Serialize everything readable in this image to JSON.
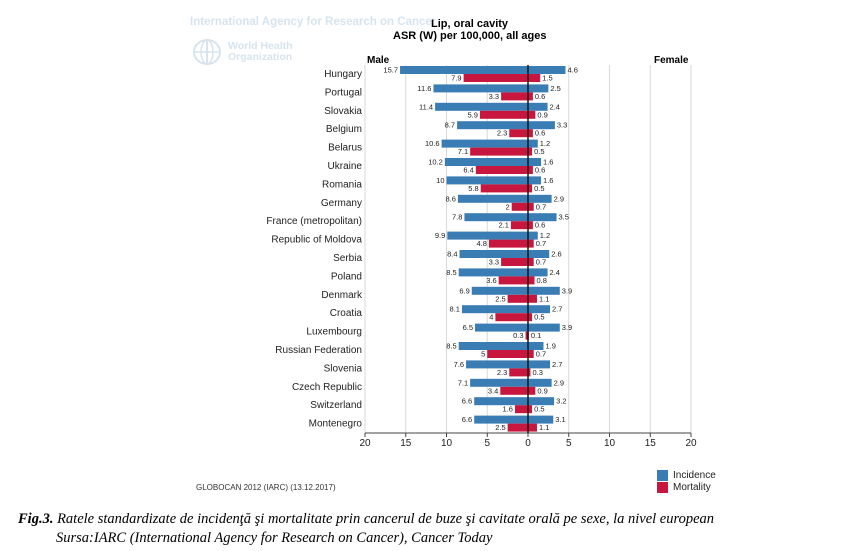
{
  "watermark": {
    "iarc": "International Agency for Research on Cancer",
    "who_line1": "World Health",
    "who_line2": "Organization"
  },
  "chart_data": {
    "type": "bar",
    "orientation": "horizontal-butterfly",
    "title": "Lip, oral cavity",
    "subtitle": "ASR (W) per 100,000, all ages",
    "left_label": "Male",
    "right_label": "Female",
    "xlim": [
      -20,
      20
    ],
    "xticks": [
      -20,
      -15,
      -10,
      -5,
      0,
      5,
      10,
      15,
      20
    ],
    "xtick_labels": [
      "20",
      "15",
      "10",
      "5",
      "0",
      "5",
      "10",
      "15",
      "20"
    ],
    "categories": [
      "Hungary",
      "Portugal",
      "Slovakia",
      "Belgium",
      "Belarus",
      "Ukraine",
      "Romania",
      "Germany",
      "France (metropolitan)",
      "Republic of Moldova",
      "Serbia",
      "Poland",
      "Denmark",
      "Croatia",
      "Luxembourg",
      "Russian Federation",
      "Slovenia",
      "Czech Republic",
      "Switzerland",
      "Montenegro"
    ],
    "male_incidence": [
      15.7,
      11.6,
      11.4,
      8.7,
      10.6,
      10.2,
      10,
      8.6,
      7.8,
      9.9,
      8.4,
      8.5,
      6.9,
      8.1,
      6.5,
      8.5,
      7.6,
      7.1,
      6.6,
      6.6
    ],
    "male_mortality": [
      7.9,
      3.3,
      5.9,
      2.3,
      7.1,
      6.4,
      5.8,
      2,
      2.1,
      4.8,
      3.3,
      3.6,
      2.5,
      4,
      0.3,
      5,
      2.3,
      3.4,
      1.6,
      2.5
    ],
    "female_incidence": [
      4.6,
      2.5,
      2.4,
      3.3,
      1.2,
      1.6,
      1.6,
      2.9,
      3.5,
      1.2,
      2.6,
      2.4,
      3.9,
      2.7,
      3.9,
      1.9,
      2.7,
      2.9,
      3.2,
      3.1
    ],
    "female_mortality": [
      1.5,
      0.6,
      0.9,
      0.6,
      0.5,
      0.6,
      0.5,
      0.7,
      0.6,
      0.7,
      0.7,
      0.8,
      1.1,
      0.5,
      0.1,
      0.7,
      0.3,
      0.9,
      0.5,
      1.1
    ],
    "legend": [
      "Incidence",
      "Mortality"
    ],
    "colors": {
      "incidence": "#3a7db5",
      "mortality": "#c8173f"
    }
  },
  "source_note": "GLOBOCAN 2012 (IARC) (13.12.2017)",
  "caption": {
    "fig_label": "Fig.3.",
    "line1": "Ratele standardizate de incidenţă şi mortalitate prin cancerul de buze şi cavitate orală pe  sexe, la nivel european",
    "line2": "Sursa:IARC (International Agency for Research on Cancer), Cancer Today"
  }
}
